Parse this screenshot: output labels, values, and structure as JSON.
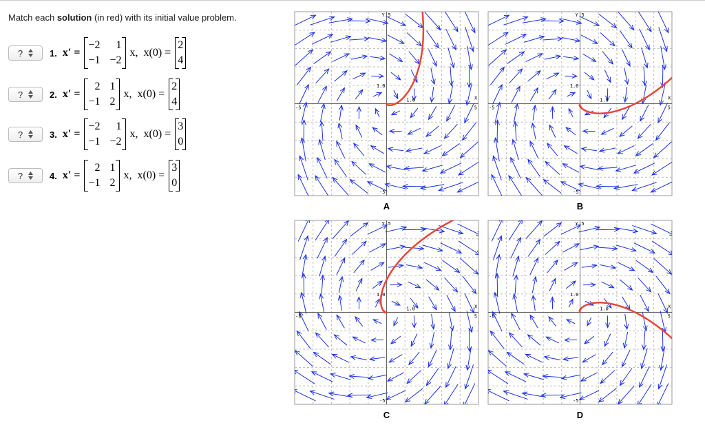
{
  "header": {
    "instruction_before": "Match each ",
    "instruction_bold": "solution",
    "instruction_after": " (in red) with its initial value problem."
  },
  "problems": [
    {
      "select": "?",
      "number": "1.",
      "lhs": "x′ =",
      "matrix": [
        [
          "−2",
          "1"
        ],
        [
          "−1",
          "−2"
        ]
      ],
      "mid": "x,  x(0) =",
      "initial": [
        "2",
        "4"
      ]
    },
    {
      "select": "?",
      "number": "2.",
      "lhs": "x′ =",
      "matrix": [
        [
          "2",
          "1"
        ],
        [
          "−1",
          "2"
        ]
      ],
      "mid": "x,  x(0) =",
      "initial": [
        "2",
        "4"
      ]
    },
    {
      "select": "?",
      "number": "3.",
      "lhs": "x′ =",
      "matrix": [
        [
          "−2",
          "1"
        ],
        [
          "−1",
          "−2"
        ]
      ],
      "mid": "x,  x(0) =",
      "initial": [
        "3",
        "0"
      ]
    },
    {
      "select": "?",
      "number": "4.",
      "lhs": "x′ =",
      "matrix": [
        [
          "2",
          "1"
        ],
        [
          "−1",
          "2"
        ]
      ],
      "mid": "x,  x(0) =",
      "initial": [
        "3",
        "0"
      ]
    }
  ],
  "graphs": [
    {
      "label": "A",
      "y_label": "Y",
      "x_label": "X",
      "top": "5",
      "bottom": "-5",
      "left": "-5",
      "right": "5",
      "x_unit": "1.0",
      "y_unit": "1.0"
    },
    {
      "label": "B",
      "y_label": "Y",
      "x_label": "X",
      "top": "5",
      "bottom": "-5",
      "left": "-5",
      "right": "5",
      "x_unit": "1.0",
      "y_unit": "1.0"
    },
    {
      "label": "C",
      "y_label": "Y",
      "x_label": "X",
      "top": "5",
      "bottom": "-5",
      "left": "-5",
      "right": "5",
      "x_unit": "1.0",
      "y_unit": "1.0"
    },
    {
      "label": "D",
      "y_label": "Y",
      "x_label": "X",
      "top": "5",
      "bottom": "-5",
      "left": "-5",
      "right": "5",
      "x_unit": "1.0",
      "y_unit": "1.0"
    }
  ]
}
